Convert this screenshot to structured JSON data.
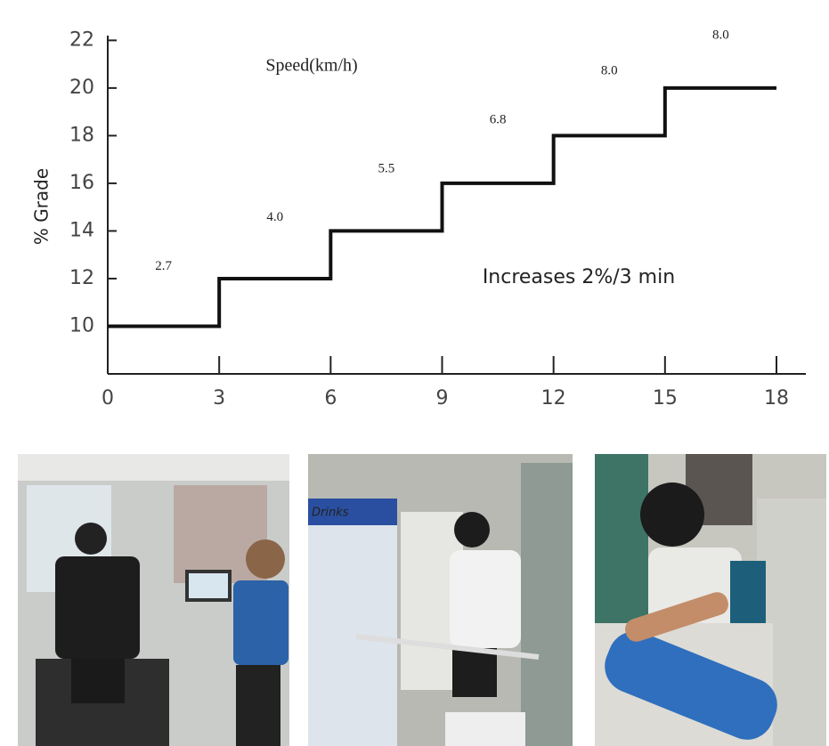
{
  "chart_data": {
    "type": "line",
    "speed_title": "Speed(km/h)",
    "annotation": "Increases 2%/3 min",
    "y_label": "% Grade",
    "speed_labels": [
      "2.7",
      "4.0",
      "5.5",
      "6.8",
      "8.0",
      "8.0"
    ],
    "x": [
      0,
      3,
      3,
      6,
      6,
      9,
      9,
      12,
      12,
      15,
      15,
      18
    ],
    "values": [
      10,
      10,
      12,
      12,
      14,
      14,
      16,
      16,
      18,
      18,
      20,
      20
    ],
    "color": "#111111",
    "xlim": [
      0,
      18
    ],
    "xticks": [
      0,
      3,
      6,
      9,
      12,
      15,
      18
    ],
    "ylim": [
      8,
      22.2
    ],
    "yticks": [
      10,
      12,
      14,
      16,
      18,
      20,
      22
    ]
  }
}
